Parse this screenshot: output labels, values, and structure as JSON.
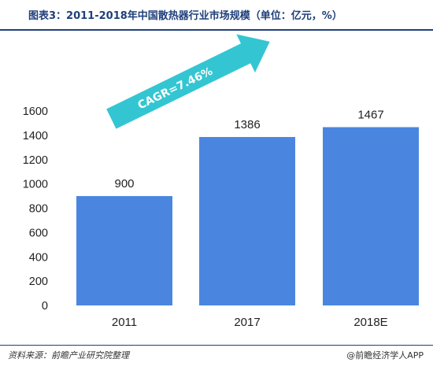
{
  "title": "图表3：2011-2018年中国散热器行业市场规模（单位：亿元，%）",
  "source": "资料来源：前瞻产业研究院整理",
  "credit": "@前瞻经济学人APP",
  "chart_data": {
    "type": "bar",
    "categories": [
      "2011",
      "2017",
      "2018E"
    ],
    "values": [
      900,
      1386,
      1467
    ],
    "data_labels": [
      "900",
      "1386",
      "1467"
    ],
    "ylim": [
      0,
      1600
    ],
    "yticks": [
      0,
      200,
      400,
      600,
      800,
      1000,
      1200,
      1400,
      1600
    ],
    "grid": false,
    "bar_color": "#4a86e0",
    "annotation": {
      "text": "CAGR=7.46%",
      "shape": "arrow",
      "color": "#33c6d2"
    }
  }
}
